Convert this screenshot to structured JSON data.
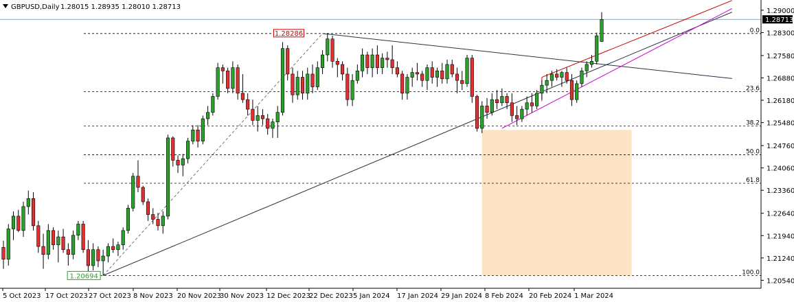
{
  "header": {
    "symbol": "GBPUSD,Daily",
    "ohlc": "1.28015 1.28935 1.28010 1.28713"
  },
  "colors": {
    "bull": "#2ca02c",
    "bear": "#e03030",
    "wick": "#000000",
    "zone": "#fde2c4",
    "fib_line": "#000000",
    "trend_red": "#cc0000",
    "trend_magenta": "#cc00cc",
    "trend_dark": "#223344",
    "price_tag_bg": "#000000",
    "price_tag_fg": "#ffffff"
  },
  "chart_data": {
    "type": "candlestick",
    "symbol": "GBPUSD",
    "timeframe": "Daily",
    "ylim": [
      1.2029,
      1.2932
    ],
    "y_ticks": [
      "1.29000",
      "1.28300",
      "1.27580",
      "1.26880",
      "1.26180",
      "1.25480",
      "1.24760",
      "1.24060",
      "1.23360",
      "1.22640",
      "1.21940",
      "1.21240",
      "1.20540"
    ],
    "x_ticks": [
      "5 Oct 2023",
      "17 Oct 2023",
      "27 Oct 2023",
      "8 Nov 2023",
      "20 Nov 2023",
      "30 Nov 2023",
      "12 Dec 2023",
      "22 Dec 2023",
      "5 Jan 2024",
      "17 Jan 2024",
      "29 Jan 2024",
      "8 Feb 2024",
      "20 Feb 2024",
      "1 Mar 2024"
    ],
    "current_price": "1.28713",
    "candles": [
      [
        1.2157,
        1.2178,
        1.209,
        1.212
      ],
      [
        1.212,
        1.223,
        1.21,
        1.2215
      ],
      [
        1.2215,
        1.227,
        1.218,
        1.2255
      ],
      [
        1.2255,
        1.2275,
        1.2205,
        1.221
      ],
      [
        1.221,
        1.23,
        1.219,
        1.2285
      ],
      [
        1.2285,
        1.2335,
        1.226,
        1.231
      ],
      [
        1.231,
        1.233,
        1.221,
        1.2225
      ],
      [
        1.2225,
        1.224,
        1.214,
        1.216
      ],
      [
        1.216,
        1.22,
        1.209,
        1.2135
      ],
      [
        1.2135,
        1.223,
        1.212,
        1.221
      ],
      [
        1.221,
        1.222,
        1.215,
        1.2165
      ],
      [
        1.2165,
        1.221,
        1.211,
        1.219
      ],
      [
        1.219,
        1.2215,
        1.214,
        1.215
      ],
      [
        1.215,
        1.217,
        1.21,
        1.2135
      ],
      [
        1.2135,
        1.221,
        1.212,
        1.2195
      ],
      [
        1.2195,
        1.224,
        1.218,
        1.223
      ],
      [
        1.223,
        1.224,
        1.214,
        1.215
      ],
      [
        1.215,
        1.218,
        1.2075,
        1.21
      ],
      [
        1.21,
        1.217,
        1.2085,
        1.215
      ],
      [
        1.215,
        1.216,
        1.2095,
        1.2115
      ],
      [
        1.2115,
        1.215,
        1.2069,
        1.213
      ],
      [
        1.213,
        1.217,
        1.211,
        1.216
      ],
      [
        1.216,
        1.2185,
        1.214,
        1.215
      ],
      [
        1.215,
        1.2175,
        1.213,
        1.2165
      ],
      [
        1.2165,
        1.222,
        1.215,
        1.221
      ],
      [
        1.221,
        1.229,
        1.22,
        1.228
      ],
      [
        1.228,
        1.239,
        1.227,
        1.238
      ],
      [
        1.238,
        1.243,
        1.233,
        1.2345
      ],
      [
        1.2345,
        1.235,
        1.229,
        1.23
      ],
      [
        1.23,
        1.231,
        1.224,
        1.226
      ],
      [
        1.226,
        1.228,
        1.223,
        1.2245
      ],
      [
        1.2245,
        1.2265,
        1.221,
        1.2225
      ],
      [
        1.2225,
        1.227,
        1.22,
        1.2255
      ],
      [
        1.2255,
        1.251,
        1.2245,
        1.25
      ],
      [
        1.25,
        1.2505,
        1.241,
        1.243
      ],
      [
        1.243,
        1.2445,
        1.239,
        1.2415
      ],
      [
        1.2415,
        1.245,
        1.238,
        1.2435
      ],
      [
        1.2435,
        1.25,
        1.242,
        1.249
      ],
      [
        1.249,
        1.254,
        1.248,
        1.2525
      ],
      [
        1.2525,
        1.254,
        1.247,
        1.249
      ],
      [
        1.249,
        1.257,
        1.248,
        1.256
      ],
      [
        1.256,
        1.26,
        1.254,
        1.258
      ],
      [
        1.258,
        1.264,
        1.257,
        1.263
      ],
      [
        1.263,
        1.2735,
        1.262,
        1.272
      ],
      [
        1.272,
        1.273,
        1.267,
        1.271
      ],
      [
        1.271,
        1.272,
        1.264,
        1.2655
      ],
      [
        1.2655,
        1.274,
        1.264,
        1.272
      ],
      [
        1.272,
        1.273,
        1.262,
        1.264
      ],
      [
        1.264,
        1.27,
        1.261,
        1.262
      ],
      [
        1.262,
        1.264,
        1.257,
        1.259
      ],
      [
        1.259,
        1.262,
        1.254,
        1.2555
      ],
      [
        1.2555,
        1.26,
        1.252,
        1.257
      ],
      [
        1.257,
        1.259,
        1.254,
        1.256
      ],
      [
        1.256,
        1.2575,
        1.251,
        1.253
      ],
      [
        1.253,
        1.256,
        1.25,
        1.255
      ],
      [
        1.255,
        1.26,
        1.25,
        1.258
      ],
      [
        1.258,
        1.28,
        1.257,
        1.278
      ],
      [
        1.278,
        1.279,
        1.268,
        1.27
      ],
      [
        1.27,
        1.272,
        1.261,
        1.2635
      ],
      [
        1.2635,
        1.271,
        1.262,
        1.269
      ],
      [
        1.269,
        1.271,
        1.262,
        1.264
      ],
      [
        1.264,
        1.272,
        1.262,
        1.27
      ],
      [
        1.27,
        1.273,
        1.264,
        1.266
      ],
      [
        1.266,
        1.274,
        1.265,
        1.272
      ],
      [
        1.272,
        1.2775,
        1.27,
        1.276
      ],
      [
        1.276,
        1.2827,
        1.274,
        1.281
      ],
      [
        1.281,
        1.282,
        1.272,
        1.274
      ],
      [
        1.274,
        1.275,
        1.269,
        1.273
      ],
      [
        1.273,
        1.274,
        1.268,
        1.27
      ],
      [
        1.27,
        1.272,
        1.26,
        1.262
      ],
      [
        1.262,
        1.27,
        1.26,
        1.268
      ],
      [
        1.268,
        1.273,
        1.267,
        1.271
      ],
      [
        1.271,
        1.278,
        1.269,
        1.276
      ],
      [
        1.276,
        1.277,
        1.27,
        1.272
      ],
      [
        1.272,
        1.278,
        1.269,
        1.276
      ],
      [
        1.276,
        1.279,
        1.27,
        1.272
      ],
      [
        1.272,
        1.2765,
        1.27,
        1.275
      ],
      [
        1.275,
        1.277,
        1.272,
        1.2745
      ],
      [
        1.2745,
        1.279,
        1.27,
        1.272
      ],
      [
        1.272,
        1.274,
        1.269,
        1.27
      ],
      [
        1.27,
        1.271,
        1.262,
        1.264
      ],
      [
        1.264,
        1.27,
        1.262,
        1.269
      ],
      [
        1.269,
        1.272,
        1.266,
        1.2705
      ],
      [
        1.2705,
        1.2735,
        1.268,
        1.27
      ],
      [
        1.27,
        1.271,
        1.266,
        1.268
      ],
      [
        1.268,
        1.273,
        1.265,
        1.272
      ],
      [
        1.272,
        1.274,
        1.267,
        1.269
      ],
      [
        1.269,
        1.272,
        1.266,
        1.271
      ],
      [
        1.271,
        1.2735,
        1.267,
        1.2685
      ],
      [
        1.2685,
        1.2745,
        1.267,
        1.273
      ],
      [
        1.273,
        1.2745,
        1.269,
        1.27
      ],
      [
        1.27,
        1.272,
        1.264,
        1.268
      ],
      [
        1.268,
        1.271,
        1.265,
        1.267
      ],
      [
        1.267,
        1.276,
        1.266,
        1.275
      ],
      [
        1.275,
        1.276,
        1.261,
        1.263
      ],
      [
        1.263,
        1.2635,
        1.252,
        1.253
      ],
      [
        1.253,
        1.2615,
        1.2515,
        1.26
      ],
      [
        1.26,
        1.2625,
        1.256,
        1.258
      ],
      [
        1.258,
        1.264,
        1.257,
        1.262
      ],
      [
        1.262,
        1.265,
        1.259,
        1.261
      ],
      [
        1.261,
        1.2655,
        1.26,
        1.263
      ],
      [
        1.263,
        1.264,
        1.259,
        1.261
      ],
      [
        1.261,
        1.264,
        1.255,
        1.257
      ],
      [
        1.257,
        1.26,
        1.254,
        1.256
      ],
      [
        1.256,
        1.26,
        1.255,
        1.259
      ],
      [
        1.259,
        1.263,
        1.257,
        1.261
      ],
      [
        1.261,
        1.264,
        1.258,
        1.26
      ],
      [
        1.26,
        1.265,
        1.259,
        1.264
      ],
      [
        1.264,
        1.268,
        1.262,
        1.2665
      ],
      [
        1.2665,
        1.27,
        1.264,
        1.268
      ],
      [
        1.268,
        1.271,
        1.266,
        1.27
      ],
      [
        1.27,
        1.2715,
        1.268,
        1.269
      ],
      [
        1.269,
        1.271,
        1.266,
        1.2705
      ],
      [
        1.2705,
        1.272,
        1.267,
        1.268
      ],
      [
        1.268,
        1.27,
        1.26,
        1.262
      ],
      [
        1.262,
        1.268,
        1.261,
        1.267
      ],
      [
        1.267,
        1.272,
        1.266,
        1.271
      ],
      [
        1.271,
        1.274,
        1.269,
        1.273
      ],
      [
        1.273,
        1.276,
        1.272,
        1.274
      ],
      [
        1.274,
        1.283,
        1.273,
        1.282
      ],
      [
        1.2802,
        1.2894,
        1.2801,
        1.2871
      ]
    ],
    "fib_levels": [
      {
        "label": "0.0",
        "price": 1.2827
      },
      {
        "label": "23.6",
        "price": 1.2645
      },
      {
        "label": "38.2",
        "price": 1.2537
      },
      {
        "label": "50.0",
        "price": 1.2447
      },
      {
        "label": "61.8",
        "price": 1.2358
      },
      {
        "label": "100.0",
        "price": 1.2069
      }
    ],
    "annotations": [
      {
        "text": "1.28286",
        "kind": "high-label",
        "color": "#cc0000"
      },
      {
        "text": "1.20694",
        "kind": "low-label",
        "color": "#2ca02c"
      }
    ],
    "trend_lines": [
      {
        "color": "#223344",
        "from": [
          20,
          1.2069
        ],
        "to": [
          131,
          1.2795
        ]
      },
      {
        "color": "#223344",
        "from": [
          64,
          1.2827
        ],
        "to": [
          131,
          1.2712
        ]
      },
      {
        "color": "#cc00cc",
        "from": [
          100,
          1.253
        ],
        "to": [
          131,
          1.2782
        ]
      },
      {
        "color": "#cc0000",
        "from": [
          108,
          1.269
        ],
        "to": [
          131,
          1.2835
        ]
      },
      {
        "color": "#cc0000",
        "from": [
          108,
          1.269
        ],
        "to": [
          108,
          1.2615
        ]
      }
    ],
    "zone": {
      "from": [
        96,
        1.2525
      ],
      "to": [
        126,
        1.2069
      ]
    }
  }
}
